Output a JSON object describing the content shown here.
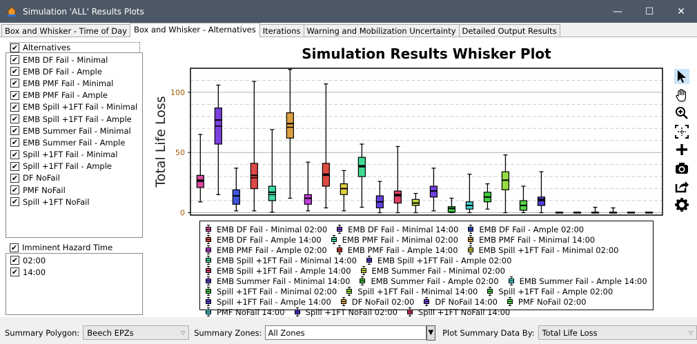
{
  "window": {
    "title": "Simulation 'ALL' Results Plots",
    "minimize": "—",
    "maximize": "☐",
    "close": "✕"
  },
  "tabs": [
    {
      "label": "Box and Whisker - Time of Day",
      "active": false
    },
    {
      "label": "Box and Whisker - Alternatives",
      "active": true
    },
    {
      "label": "Iterations",
      "active": false
    },
    {
      "label": "Warning and Mobilization Uncertainty",
      "active": false
    },
    {
      "label": "Detailed Output Results",
      "active": false
    }
  ],
  "alternatives": {
    "header": "Alternatives",
    "checked": true,
    "items": [
      {
        "label": "EMB DF Fail - Minimal",
        "checked": true
      },
      {
        "label": "EMB DF Fail - Ample",
        "checked": true
      },
      {
        "label": "EMB PMF Fail - Minimal",
        "checked": true
      },
      {
        "label": "EMB PMF Fail - Ample",
        "checked": true
      },
      {
        "label": "EMB Spill +1FT Fail - Minimal",
        "checked": true
      },
      {
        "label": "EMB Spill +1FT Fail - Ample",
        "checked": true
      },
      {
        "label": "EMB Summer Fail - Minimal",
        "checked": true
      },
      {
        "label": "EMB Summer Fail - Ample",
        "checked": true
      },
      {
        "label": "Spill +1FT Fail - Minimal",
        "checked": true
      },
      {
        "label": "Spill +1FT Fail - Ample",
        "checked": true
      },
      {
        "label": "DF NoFail",
        "checked": true
      },
      {
        "label": "PMF NoFail",
        "checked": true
      },
      {
        "label": "Spill +1FT NoFail",
        "checked": true
      }
    ]
  },
  "hazard_time": {
    "header": "Imminent Hazard Time",
    "checked": true,
    "items": [
      {
        "label": "02:00",
        "checked": true
      },
      {
        "label": "14:00",
        "checked": true
      }
    ]
  },
  "toolbar": [
    "pointer-icon",
    "pan-hand-icon",
    "zoom-in-icon",
    "fit-extents-icon",
    "crosshair-plus-icon",
    "camera-icon",
    "export-icon",
    "settings-gear-icon"
  ],
  "bottom": {
    "summary_polygon_label": "Summary Polygon:",
    "summary_polygon_value": "Beech EPZs",
    "summary_zones_label": "Summary Zones:",
    "summary_zones_value": "All Zones",
    "plot_by_label": "Plot Summary Data By:",
    "plot_by_value": "Total Life Loss"
  },
  "chart_data": {
    "type": "box",
    "title": "Simulation Results Whisker Plot",
    "ylabel": "Total Life Loss",
    "xlabel": "",
    "ylim": [
      -2,
      120
    ],
    "yticks": [
      0,
      50,
      100
    ],
    "grid": true,
    "legend_placement": "bottom",
    "series": [
      {
        "name": "EMB DF Fail - Minimal 02:00",
        "color": "#d9479f",
        "min": 9,
        "q1": 21,
        "median": 27,
        "mean": 26,
        "q3": 31,
        "max": 65
      },
      {
        "name": "EMB DF Fail - Minimal 14:00",
        "color": "#7a41dc",
        "min": 15,
        "q1": 57,
        "median": 77,
        "mean": 72,
        "q3": 87,
        "max": 106
      },
      {
        "name": "EMB DF Fail - Ample 02:00",
        "color": "#3f55dc",
        "min": 1.5,
        "q1": 7,
        "median": 14,
        "q3": 19,
        "max": 37
      },
      {
        "name": "EMB DF Fail - Ample 14:00",
        "color": "#dc4747",
        "min": 1.5,
        "q1": 20,
        "median": 31,
        "mean": 29,
        "q3": 41,
        "max": 109
      },
      {
        "name": "EMB PMF Fail - Minimal 02:00",
        "color": "#3fdca0",
        "min": 0.5,
        "q1": 10,
        "median": 17,
        "mean": 15,
        "q3": 22,
        "max": 69
      },
      {
        "name": "EMB PMF Fail - Minimal 14:00",
        "color": "#dca040",
        "min": 12,
        "q1": 62,
        "median": 74,
        "mean": 71,
        "q3": 83,
        "max": 119
      },
      {
        "name": "EMB PMF Fail - Ample 02:00",
        "color": "#c43fdc",
        "min": 1.5,
        "q1": 7,
        "median": 12,
        "q3": 15,
        "max": 42
      },
      {
        "name": "EMB PMF Fail - Ample 14:00",
        "color": "#dc4a40",
        "min": 4,
        "q1": 22,
        "median": 32,
        "mean": 31,
        "q3": 41,
        "max": 107
      },
      {
        "name": "EMB Spill +1FT Fail - Minimal 02:00",
        "color": "#dcd040",
        "min": 1.5,
        "q1": 15,
        "median": 20,
        "q3": 24,
        "max": 35
      },
      {
        "name": "EMB Spill +1FT Fail - Minimal 14:00",
        "color": "#40dc96",
        "min": 4.5,
        "q1": 30,
        "median": 39,
        "mean": 38,
        "q3": 46,
        "max": 57
      },
      {
        "name": "EMB Spill +1FT Fail - Ample 02:00",
        "color": "#6240dc",
        "min": 0,
        "q1": 4,
        "median": 9,
        "q3": 14,
        "max": 26
      },
      {
        "name": "EMB Spill +1FT Fail - Ample 14:00",
        "color": "#dc4060",
        "min": 0,
        "q1": 8,
        "median": 15,
        "mean": 14,
        "q3": 18,
        "max": 55
      },
      {
        "name": "EMB Summer Fail - Minimal 02:00",
        "color": "#c4dc40",
        "min": 0,
        "q1": 6,
        "median": 8,
        "q3": 11,
        "max": 16
      },
      {
        "name": "EMB Summer Fail - Minimal 14:00",
        "color": "#7040dc",
        "min": 1.5,
        "q1": 13,
        "median": 18,
        "q3": 22,
        "max": 37
      },
      {
        "name": "EMB Summer Fail - Ample 02:00",
        "color": "#40c840",
        "min": 0,
        "q1": 0.5,
        "median": 3.5,
        "q3": 5,
        "max": 12
      },
      {
        "name": "EMB Summer Fail - Ample 14:00",
        "color": "#40d4d4",
        "min": 0,
        "q1": 3,
        "median": 6,
        "q3": 9,
        "max": 32
      },
      {
        "name": "Spill +1FT Fail - Minimal 02:00",
        "color": "#40d040",
        "min": 3,
        "q1": 9,
        "median": 13,
        "q3": 17,
        "max": 24
      },
      {
        "name": "Spill +1FT Fail - Minimal 14:00",
        "color": "#94dc40",
        "min": 0,
        "q1": 19,
        "median": 27,
        "q3": 34,
        "max": 48
      },
      {
        "name": "Spill +1FT Fail - Ample 02:00",
        "color": "#52d444",
        "min": 0,
        "q1": 2,
        "median": 6,
        "q3": 10,
        "max": 22
      },
      {
        "name": "Spill +1FT Fail - Ample 14:00",
        "color": "#5040dc",
        "min": 0,
        "q1": 6,
        "median": 11,
        "mean": 10,
        "q3": 13,
        "max": 34
      },
      {
        "name": "DF NoFail 02:00",
        "color": "#dca040",
        "min": 0,
        "q1": 0,
        "median": 0.2,
        "q3": 0.5,
        "max": 0.5
      },
      {
        "name": "DF NoFail 14:00",
        "color": "#7040dc",
        "min": 0,
        "q1": 0,
        "median": 0.2,
        "q3": 0.5,
        "max": 0.5
      },
      {
        "name": "PMF NoFail 02:00",
        "color": "#52d444",
        "min": 0,
        "q1": 0,
        "median": 0.2,
        "q3": 0.5,
        "max": 4.5
      },
      {
        "name": "PMF NoFail 14:00",
        "color": "#40d4d4",
        "min": 0,
        "q1": 0,
        "median": 0.2,
        "q3": 0.5,
        "max": 4
      },
      {
        "name": "Spill +1FT NoFail 02:00",
        "color": "#5040dc",
        "min": 0,
        "q1": 0,
        "median": 0.2,
        "q3": 0.5,
        "max": 0.5
      },
      {
        "name": "Spill +1FT NoFail 14:00",
        "color": "#dc4060",
        "min": 0,
        "q1": 0,
        "median": 0.2,
        "q3": 0.5,
        "max": 0.5
      }
    ]
  }
}
